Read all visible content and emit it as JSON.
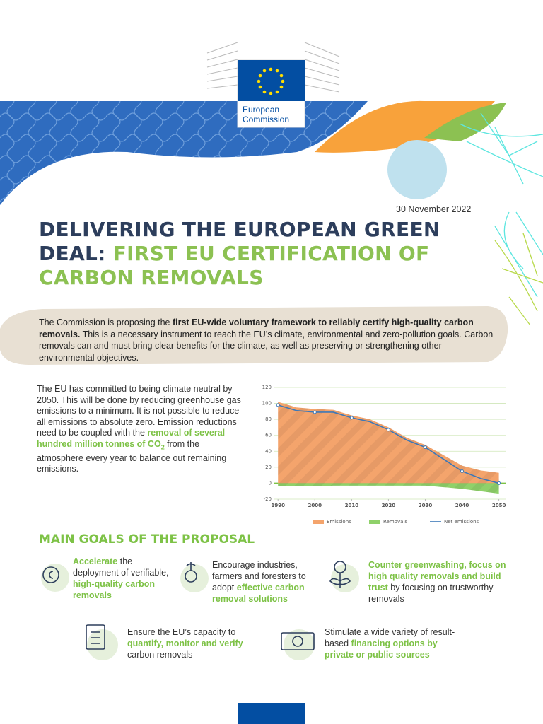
{
  "header": {
    "logo_lines": [
      "European",
      "Commission"
    ],
    "date": "30 November 2022"
  },
  "title": {
    "runs": [
      {
        "text": "DELIVERING THE EUROPEAN GREEN DEAL: "
      },
      {
        "text": "FIRST EU CERTIFICATION OF CARBON REMOVALS",
        "style": "green"
      }
    ]
  },
  "intro": {
    "runs": [
      {
        "text": "The Commission is proposing the "
      },
      {
        "text": "first EU-wide voluntary framework to reliably certify high-quality carbon removals.",
        "style": "bold"
      },
      {
        "text": " This is a necessary instrument to reach the EU’s climate, environmental and zero-pollution goals. Carbon removals can and must bring clear benefits for the climate, as well as preserving or strengthening other environmental objectives."
      }
    ]
  },
  "body": {
    "runs": [
      {
        "text": "The EU has committed to being climate neutral by 2050. This will be done by reducing greenhouse gas emissions to a minimum. It is not possible to reduce all emissions to absolute zero. Emission reductions need to be coupled with the "
      },
      {
        "text": "removal of several hundred million tonnes of CO",
        "style": "green"
      },
      {
        "text": "2",
        "style": "green-sub"
      },
      {
        "text": " from the atmosphere every year to balance out remaining emissions."
      }
    ]
  },
  "chart_data": {
    "type": "area",
    "x": [
      1990,
      1995,
      2000,
      2005,
      2010,
      2015,
      2020,
      2025,
      2030,
      2035,
      2040,
      2045,
      2050
    ],
    "series": [
      {
        "name": "Emissions",
        "type": "area",
        "color": "#f4a46c",
        "values": [
          102,
          95,
          93,
          92,
          85,
          80,
          70,
          57,
          48,
          35,
          22,
          16,
          13
        ]
      },
      {
        "name": "Removals",
        "type": "area",
        "color": "#8fd16a",
        "values": [
          -4,
          -4,
          -4,
          -3,
          -3,
          -3,
          -3,
          -3,
          -3,
          -5,
          -7,
          -10,
          -13
        ]
      },
      {
        "name": "Net emissions",
        "type": "line",
        "color": "#3c78b8",
        "values": [
          98,
          91,
          89,
          89,
          82,
          77,
          67,
          54,
          45,
          30,
          15,
          6,
          0
        ]
      }
    ],
    "xlim": [
      1989,
      2052
    ],
    "xticks": [
      1990,
      2000,
      2010,
      2020,
      2030,
      2040,
      2050
    ],
    "ylim": [
      -20,
      120
    ],
    "yticks": [
      -20,
      0,
      20,
      40,
      60,
      80,
      100,
      120
    ],
    "grid": true,
    "legend": "bottom"
  },
  "goals": {
    "heading": "MAIN GOALS OF THE PROPOSAL",
    "items": [
      {
        "runs": [
          {
            "text": "Accelerate",
            "style": "green"
          },
          {
            "text": " the deployment of verifiable, "
          },
          {
            "text": "high-quality carbon removals",
            "style": "green"
          }
        ]
      },
      {
        "runs": [
          {
            "text": "Encourage industries, farmers and foresters to adopt "
          },
          {
            "text": "effective carbon removal solutions",
            "style": "green"
          }
        ]
      },
      {
        "runs": [
          {
            "text": "Counter greenwashing, focus on high quality removals and build trust",
            "style": "green"
          },
          {
            "text": " by focusing on trustworthy removals"
          }
        ]
      },
      {
        "runs": [
          {
            "text": "Ensure the EU’s capacity to "
          },
          {
            "text": "quantify, monitor and verify",
            "style": "green"
          },
          {
            "text": " carbon removals"
          }
        ]
      },
      {
        "runs": [
          {
            "text": "Stimulate a wide variety of result-based "
          },
          {
            "text": "financing options by private or public sources",
            "style": "green"
          }
        ]
      }
    ]
  }
}
